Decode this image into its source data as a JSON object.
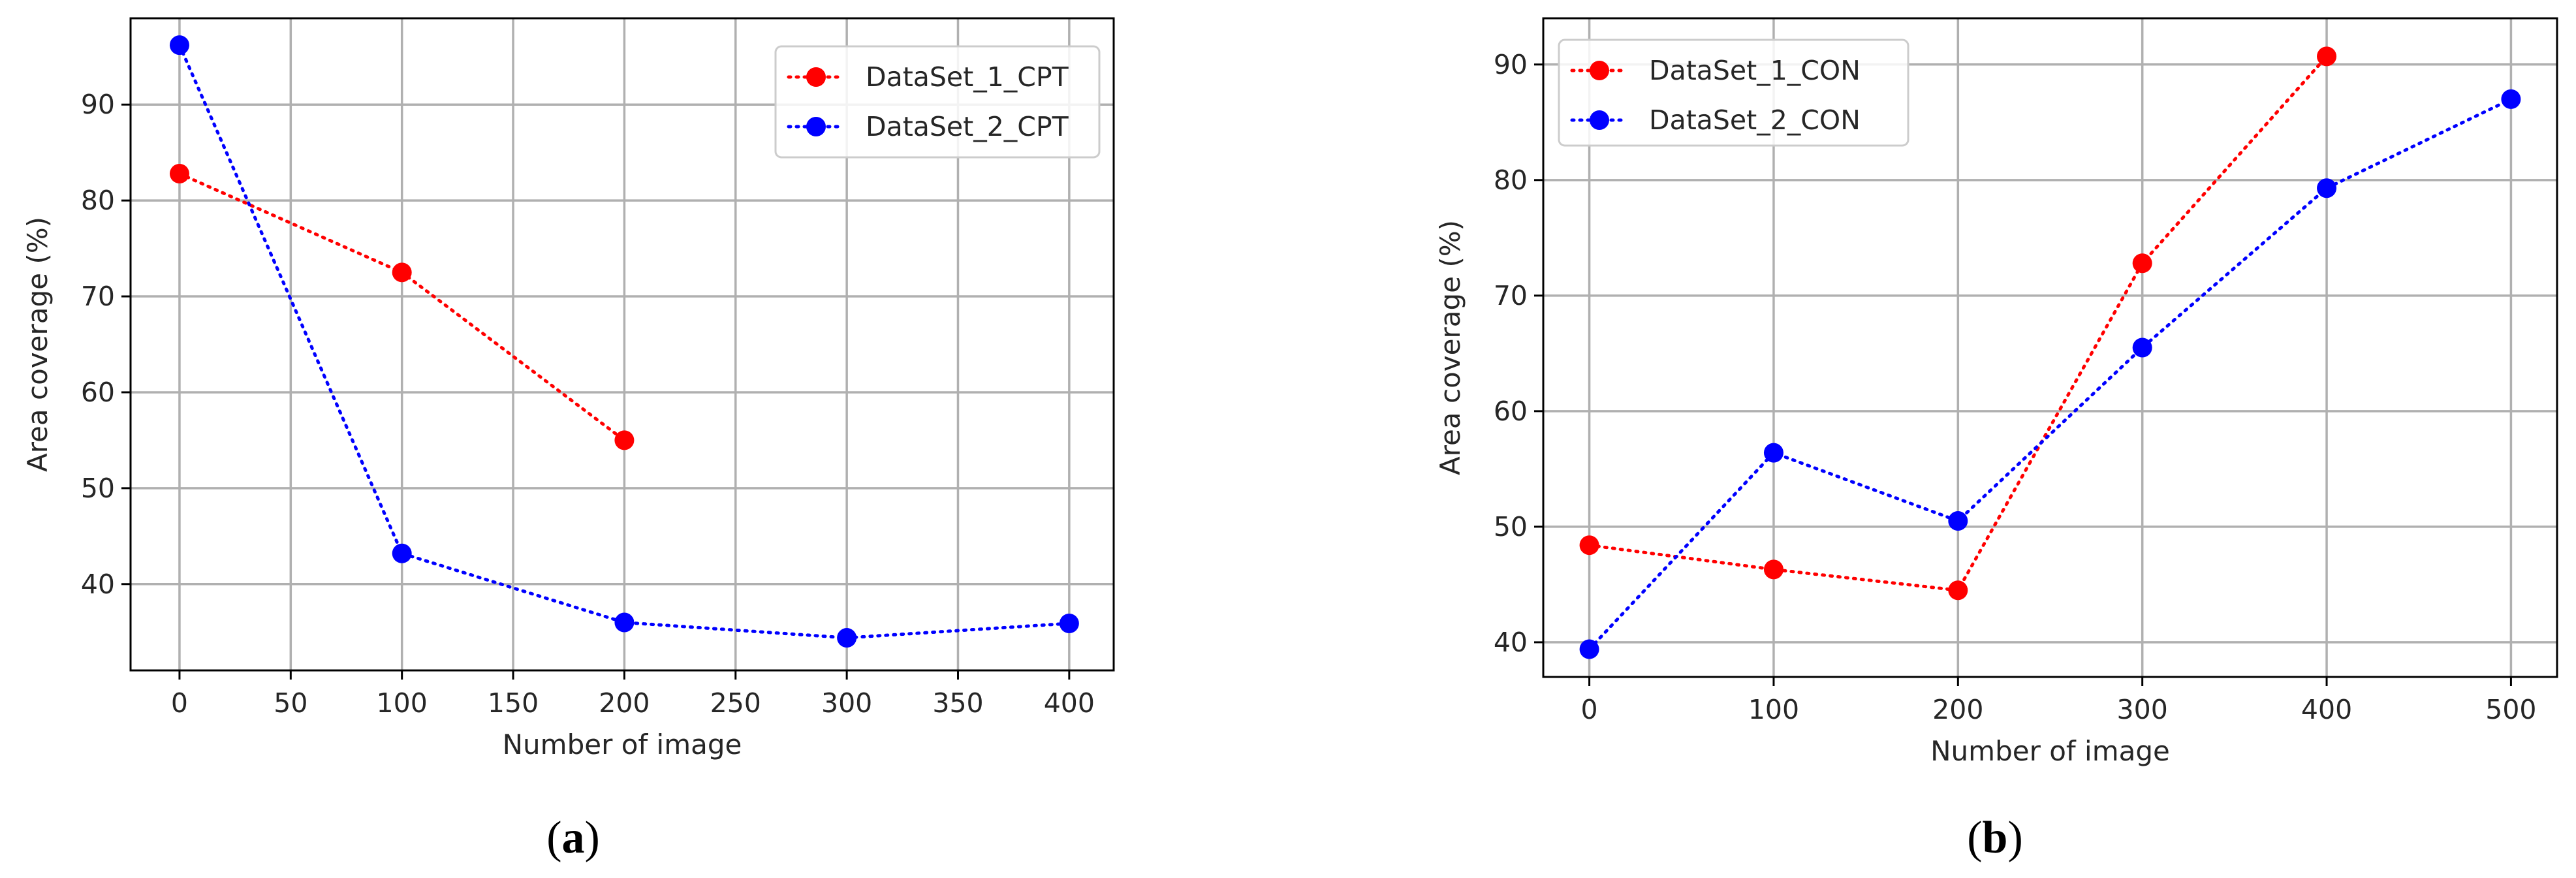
{
  "chart_data": [
    {
      "type": "line",
      "panel_label": {
        "open": "(",
        "letter": "a",
        "close": ")"
      },
      "xlabel": "Number of image",
      "ylabel": "Area coverage (%)",
      "xlim": [
        -22,
        420
      ],
      "ylim": [
        31,
        99
      ],
      "xticks": [
        0,
        50,
        100,
        150,
        200,
        250,
        300,
        350,
        400
      ],
      "yticks": [
        40,
        50,
        60,
        70,
        80,
        90
      ],
      "grid": true,
      "legend_position": "top-right",
      "series": [
        {
          "name": "DataSet_1_CPT",
          "color": "#ff0000",
          "x": [
            0,
            100,
            200
          ],
          "values": [
            82.8,
            72.5,
            55.0
          ]
        },
        {
          "name": "DataSet_2_CPT",
          "color": "#0000ff",
          "x": [
            0,
            100,
            200,
            300,
            400
          ],
          "values": [
            96.2,
            43.2,
            36.0,
            34.4,
            35.9
          ]
        }
      ]
    },
    {
      "type": "line",
      "panel_label": {
        "open": "(",
        "letter": "b",
        "close": ")"
      },
      "xlabel": "Number of image",
      "ylabel": "Area coverage (%)",
      "xlim": [
        -25,
        525
      ],
      "ylim": [
        37,
        94
      ],
      "xticks": [
        0,
        100,
        200,
        300,
        400,
        500
      ],
      "yticks": [
        40,
        50,
        60,
        70,
        80,
        90
      ],
      "grid": true,
      "legend_position": "top-left",
      "series": [
        {
          "name": "DataSet_1_CON",
          "color": "#ff0000",
          "x": [
            0,
            100,
            200,
            300,
            400
          ],
          "values": [
            48.4,
            46.3,
            44.5,
            72.8,
            90.7
          ]
        },
        {
          "name": "DataSet_2_CON",
          "color": "#0000ff",
          "x": [
            0,
            100,
            200,
            300,
            400,
            500
          ],
          "values": [
            39.4,
            56.4,
            50.5,
            65.5,
            79.3,
            87.0
          ]
        }
      ]
    }
  ]
}
